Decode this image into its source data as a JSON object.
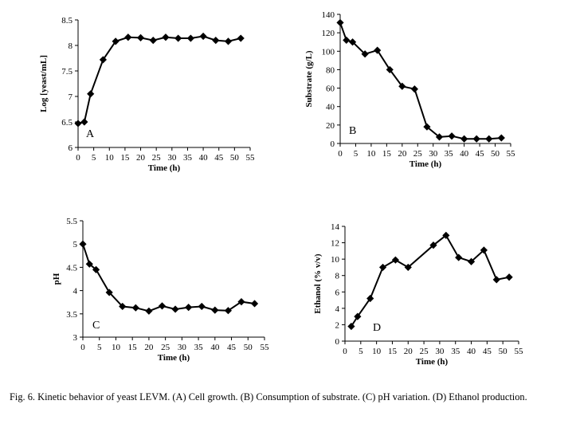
{
  "caption": "Fig. 6. Kinetic behavior of yeast LEVM. (A) Cell growth.  (B) Consumption of substrate.  (C) pH variation.  (D) Ethanol production.",
  "chart_data": [
    {
      "id": "A",
      "type": "line",
      "letter": "A",
      "title": "",
      "xlabel": "Time (h)",
      "ylabel": "Log  [yeast/mL]",
      "xlim": [
        0,
        55
      ],
      "xticks": [
        0,
        5,
        10,
        15,
        20,
        25,
        30,
        35,
        40,
        45,
        50,
        55
      ],
      "ylim": [
        6,
        8.5
      ],
      "yticks": [
        6,
        6.5,
        7,
        7.5,
        8,
        8.5
      ],
      "series": [
        {
          "name": "Cell growth",
          "x": [
            0,
            2,
            4,
            8,
            12,
            16,
            20,
            24,
            28,
            32,
            36,
            40,
            44,
            48,
            52
          ],
          "y": [
            6.47,
            6.5,
            7.05,
            7.72,
            8.08,
            8.16,
            8.15,
            8.1,
            8.16,
            8.14,
            8.14,
            8.18,
            8.1,
            8.08,
            8.14
          ]
        }
      ]
    },
    {
      "id": "B",
      "type": "line",
      "letter": "B",
      "title": "",
      "xlabel": "Time (h)",
      "ylabel": "Substrate  (g/L)",
      "xlim": [
        0,
        55
      ],
      "xticks": [
        0,
        5,
        10,
        15,
        20,
        25,
        30,
        35,
        40,
        45,
        50,
        55
      ],
      "ylim": [
        0,
        140
      ],
      "yticks": [
        0,
        20,
        40,
        60,
        80,
        100,
        120,
        140
      ],
      "series": [
        {
          "name": "Substrate",
          "x": [
            0,
            2,
            4,
            8,
            12,
            16,
            20,
            24,
            28,
            32,
            36,
            40,
            44,
            48,
            52
          ],
          "y": [
            131,
            112,
            110,
            97,
            101,
            80,
            62,
            59,
            18,
            7,
            8,
            5,
            5,
            5,
            6
          ]
        }
      ]
    },
    {
      "id": "C",
      "type": "line",
      "letter": "C",
      "title": "",
      "xlabel": "Time (h)",
      "ylabel": "pH",
      "xlim": [
        0,
        55
      ],
      "xticks": [
        0,
        5,
        10,
        15,
        20,
        25,
        30,
        35,
        40,
        45,
        50,
        55
      ],
      "ylim": [
        3,
        5.5
      ],
      "yticks": [
        3,
        3.5,
        4,
        4.5,
        5,
        5.5
      ],
      "series": [
        {
          "name": "pH",
          "x": [
            0,
            2,
            4,
            8,
            12,
            16,
            20,
            24,
            28,
            32,
            36,
            40,
            44,
            48,
            52
          ],
          "y": [
            5.0,
            4.57,
            4.45,
            3.96,
            3.66,
            3.63,
            3.56,
            3.67,
            3.6,
            3.64,
            3.66,
            3.58,
            3.57,
            3.76,
            3.72
          ]
        }
      ]
    },
    {
      "id": "D",
      "type": "line",
      "letter": "D",
      "title": "",
      "xlabel": "Time (h)",
      "ylabel": "Ethanol (% v/v)",
      "xlim": [
        0,
        55
      ],
      "xticks": [
        0,
        5,
        10,
        15,
        20,
        25,
        30,
        35,
        40,
        45,
        50,
        55
      ],
      "ylim": [
        0,
        14
      ],
      "yticks": [
        0,
        2,
        4,
        6,
        8,
        10,
        12,
        14
      ],
      "series": [
        {
          "name": "Ethanol",
          "x": [
            2,
            4,
            8,
            12,
            16,
            20,
            28,
            32,
            36,
            40,
            44,
            48,
            52
          ],
          "y": [
            1.8,
            3.0,
            5.2,
            9.0,
            9.9,
            9.0,
            11.7,
            12.9,
            10.2,
            9.7,
            11.1,
            7.5,
            7.8
          ]
        }
      ]
    }
  ]
}
